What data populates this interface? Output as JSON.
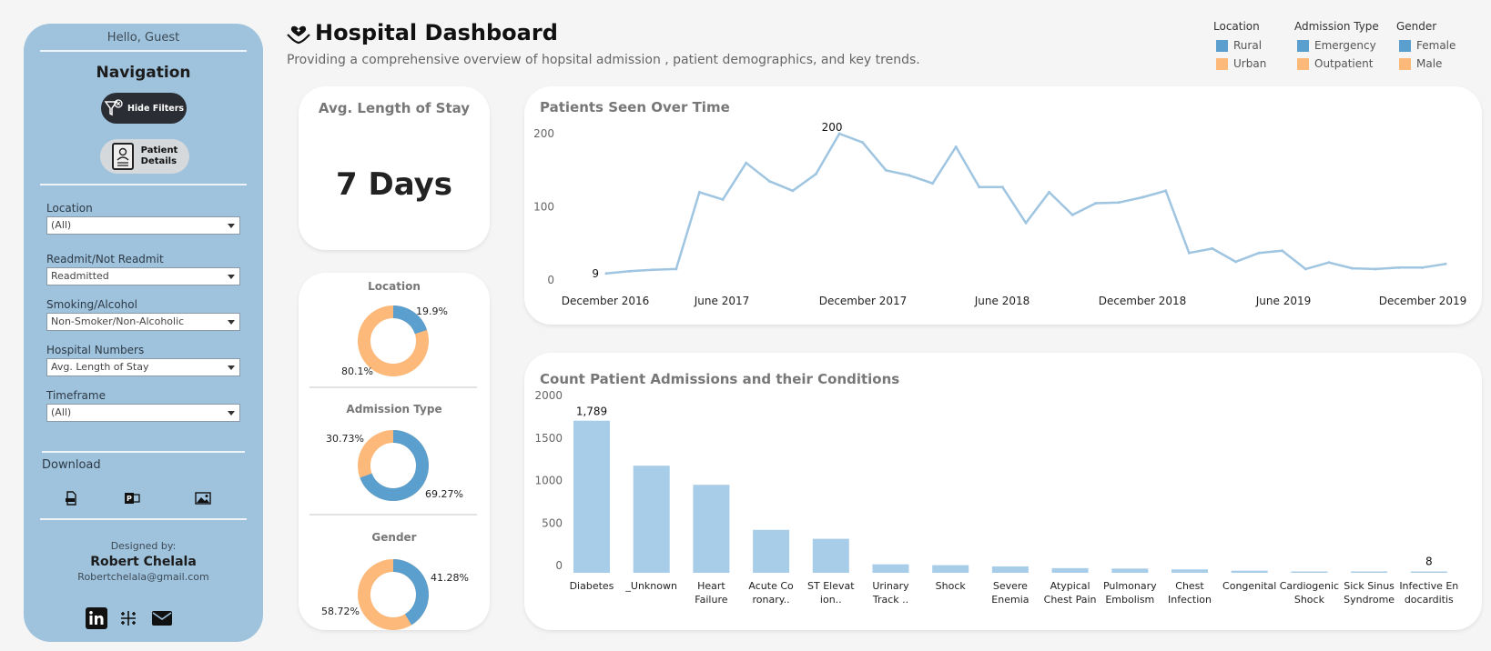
{
  "sidebar": {
    "greeting": "Hello, Guest",
    "nav_title": "Navigation",
    "hide_filters": "Hide Filters",
    "patient_details_1": "Patient",
    "patient_details_2": "Details",
    "filters": [
      {
        "label": "Location",
        "value": "(All)"
      },
      {
        "label": "Readmit/Not Readmit",
        "value": "Readmitted"
      },
      {
        "label": "Smoking/Alcohol",
        "value": "Non-Smoker/Non-Alcoholic"
      },
      {
        "label": "Hospital Numbers",
        "value": "Avg. Length of Stay"
      },
      {
        "label": "Timeframe",
        "value": "(All)"
      }
    ],
    "download": "Download",
    "designed_by": "Designed by:",
    "designer": "Robert Chelala",
    "email": "Robertchelala@gmail.com"
  },
  "header": {
    "title": "Hospital Dashboard",
    "subtitle": "Providing a comprehensive overview of hopsital admission , patient demographics, and key trends."
  },
  "legend": {
    "location": {
      "title": "Location",
      "items": [
        "Rural",
        "Urban"
      ]
    },
    "admission": {
      "title": "Admission Type",
      "items": [
        "Emergency",
        "Outpatient"
      ]
    },
    "gender": {
      "title": "Gender",
      "items": [
        "Female",
        "Male"
      ]
    }
  },
  "colors": {
    "blue": "#5b9fcf",
    "orange": "#fdb97a",
    "line": "#9fc5e1",
    "bar": "#a8cde8"
  },
  "kpi": {
    "title": "Avg. Length of Stay",
    "value": "7 Days"
  },
  "donuts": {
    "location": {
      "title": "Location",
      "small": "19.9%",
      "large": "80.1%",
      "blue_share": 19.9
    },
    "admission": {
      "title": "Admission Type",
      "small": "30.73%",
      "large": "69.27%",
      "blue_share": 69.27
    },
    "gender": {
      "title": "Gender",
      "small": "41.28%",
      "large": "58.72%",
      "blue_share": 41.28
    }
  },
  "chart_data": [
    {
      "type": "line",
      "title": "Patients Seen Over Time",
      "x_ticks": [
        "December 2016",
        "June 2017",
        "December 2017",
        "June 2018",
        "December 2018",
        "June 2019",
        "December 2019"
      ],
      "y_ticks": [
        "0",
        "100",
        "200"
      ],
      "ylim": [
        0,
        200
      ],
      "values": [
        9,
        12,
        14,
        15,
        120,
        110,
        160,
        135,
        122,
        145,
        200,
        188,
        150,
        143,
        132,
        182,
        127,
        127,
        78,
        120,
        89,
        105,
        106,
        113,
        122,
        37,
        43,
        25,
        37,
        40,
        15,
        24,
        16,
        15,
        17,
        17,
        22
      ],
      "labels": {
        "min": "9",
        "max": "200"
      }
    },
    {
      "type": "bar",
      "title": "Count Patient Admissions and their Conditions",
      "y_ticks": [
        "0",
        "500",
        "1000",
        "1500",
        "2000"
      ],
      "ylim": [
        0,
        2000
      ],
      "categories": [
        [
          "Diabetes"
        ],
        [
          "_Unknown"
        ],
        [
          "Heart",
          "Failure"
        ],
        [
          "Acute Co",
          "ronary.."
        ],
        [
          "ST Elevat",
          "ion.."
        ],
        [
          "Urinary",
          "Track .."
        ],
        [
          "Shock"
        ],
        [
          "Severe",
          "Enemia"
        ],
        [
          "Atypical",
          "Chest Pain"
        ],
        [
          "Pulmonary",
          "Embolism"
        ],
        [
          "Chest",
          "Infection"
        ],
        [
          "Congenital"
        ],
        [
          "Cardiogenic",
          "Shock"
        ],
        [
          "Sick Sinus",
          "Syndrome"
        ],
        [
          "Infective En",
          "docarditis"
        ]
      ],
      "values": [
        1789,
        1260,
        1035,
        505,
        400,
        100,
        90,
        75,
        55,
        50,
        40,
        25,
        15,
        12,
        8
      ],
      "labels": {
        "first": "1,789",
        "last": "8"
      }
    }
  ]
}
